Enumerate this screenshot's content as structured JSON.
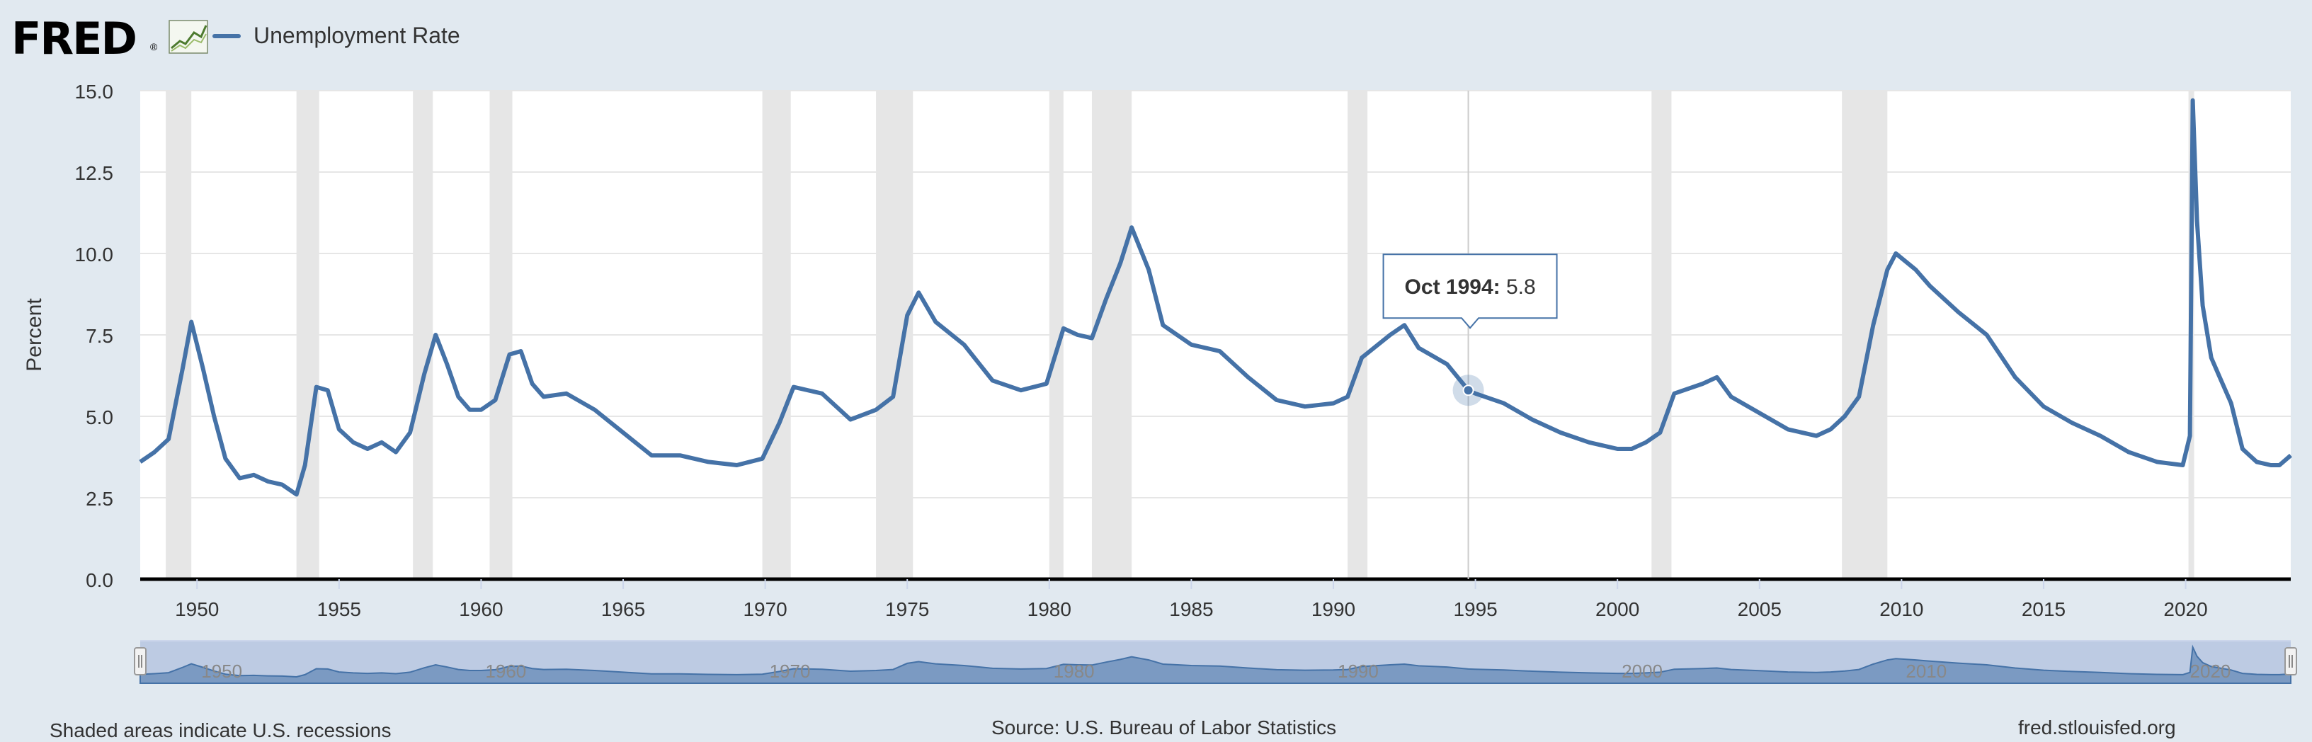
{
  "header": {
    "logo_text": "FRED",
    "logo_registered": "®",
    "legend_label": "Unemployment Rate",
    "series_color": "#4572a7"
  },
  "tooltip": {
    "date": "Oct 1994",
    "separator": ":",
    "value": "5.8",
    "x": 1994.75,
    "y": 5.8
  },
  "footer": {
    "left": "Shaded areas indicate U.S. recessions",
    "center": "Source: U.S. Bureau of Labor Statistics",
    "right": "fred.stlouisfed.org"
  },
  "chart_data": {
    "type": "line",
    "title": "Unemployment Rate",
    "xlabel": "",
    "ylabel": "Percent",
    "xlim": [
      1948,
      2023.7
    ],
    "ylim": [
      0,
      15
    ],
    "y_ticks": [
      0.0,
      2.5,
      5.0,
      7.5,
      10.0,
      12.5,
      15.0
    ],
    "y_tick_labels": [
      "0.0",
      "2.5",
      "5.0",
      "7.5",
      "10.0",
      "12.5",
      "15.0"
    ],
    "x_ticks": [
      1950,
      1955,
      1960,
      1965,
      1970,
      1975,
      1980,
      1985,
      1990,
      1995,
      2000,
      2005,
      2010,
      2015,
      2020
    ],
    "navigator_labels": [
      "1950",
      "1960",
      "1970",
      "1980",
      "1990",
      "2000",
      "2010",
      "2020"
    ],
    "recessions": [
      [
        1948.9,
        1949.8
      ],
      [
        1953.5,
        1954.3
      ],
      [
        1957.6,
        1958.3
      ],
      [
        1960.3,
        1961.1
      ],
      [
        1969.9,
        1970.9
      ],
      [
        1973.9,
        1975.2
      ],
      [
        1980.0,
        1980.5
      ],
      [
        1981.5,
        1982.9
      ],
      [
        1990.5,
        1991.2
      ],
      [
        2001.2,
        2001.9
      ],
      [
        2007.9,
        2009.5
      ],
      [
        2020.1,
        2020.3
      ]
    ],
    "series": [
      {
        "name": "Unemployment Rate",
        "x": [
          1948.0,
          1948.5,
          1949.0,
          1949.5,
          1949.8,
          1950.2,
          1950.6,
          1951.0,
          1951.5,
          1952.0,
          1952.5,
          1953.0,
          1953.5,
          1953.8,
          1954.2,
          1954.6,
          1955.0,
          1955.5,
          1956.0,
          1956.5,
          1957.0,
          1957.5,
          1958.0,
          1958.4,
          1958.8,
          1959.2,
          1959.6,
          1960.0,
          1960.5,
          1961.0,
          1961.4,
          1961.8,
          1962.2,
          1963.0,
          1964.0,
          1965.0,
          1966.0,
          1967.0,
          1968.0,
          1969.0,
          1969.9,
          1970.5,
          1971.0,
          1972.0,
          1973.0,
          1973.9,
          1974.5,
          1975.0,
          1975.4,
          1976.0,
          1977.0,
          1978.0,
          1979.0,
          1979.9,
          1980.5,
          1981.0,
          1981.5,
          1982.0,
          1982.5,
          1982.9,
          1983.5,
          1984.0,
          1985.0,
          1986.0,
          1987.0,
          1988.0,
          1989.0,
          1990.0,
          1990.5,
          1991.0,
          1992.0,
          1992.5,
          1993.0,
          1994.0,
          1994.75,
          1995.0,
          1996.0,
          1997.0,
          1998.0,
          1999.0,
          2000.0,
          2000.5,
          2001.0,
          2001.5,
          2002.0,
          2003.0,
          2003.5,
          2004.0,
          2005.0,
          2006.0,
          2007.0,
          2007.5,
          2008.0,
          2008.5,
          2009.0,
          2009.5,
          2009.8,
          2010.5,
          2011.0,
          2012.0,
          2013.0,
          2014.0,
          2015.0,
          2016.0,
          2017.0,
          2018.0,
          2019.0,
          2019.9,
          2020.15,
          2020.25,
          2020.4,
          2020.6,
          2020.9,
          2021.2,
          2021.6,
          2022.0,
          2022.5,
          2023.0,
          2023.3,
          2023.7
        ],
        "values": [
          3.6,
          3.9,
          4.3,
          6.5,
          7.9,
          6.5,
          5.0,
          3.7,
          3.1,
          3.2,
          3.0,
          2.9,
          2.6,
          3.5,
          5.9,
          5.8,
          4.6,
          4.2,
          4.0,
          4.2,
          3.9,
          4.5,
          6.3,
          7.5,
          6.6,
          5.6,
          5.2,
          5.2,
          5.5,
          6.9,
          7.0,
          6.0,
          5.6,
          5.7,
          5.2,
          4.5,
          3.8,
          3.8,
          3.6,
          3.5,
          3.7,
          4.8,
          5.9,
          5.7,
          4.9,
          5.2,
          5.6,
          8.1,
          8.8,
          7.9,
          7.2,
          6.1,
          5.8,
          6.0,
          7.7,
          7.5,
          7.4,
          8.6,
          9.7,
          10.8,
          9.5,
          7.8,
          7.2,
          7.0,
          6.2,
          5.5,
          5.3,
          5.4,
          5.6,
          6.8,
          7.5,
          7.8,
          7.1,
          6.6,
          5.8,
          5.7,
          5.4,
          4.9,
          4.5,
          4.2,
          4.0,
          4.0,
          4.2,
          4.5,
          5.7,
          6.0,
          6.2,
          5.6,
          5.1,
          4.6,
          4.4,
          4.6,
          5.0,
          5.6,
          7.8,
          9.5,
          10.0,
          9.5,
          9.0,
          8.2,
          7.5,
          6.2,
          5.3,
          4.8,
          4.4,
          3.9,
          3.6,
          3.5,
          4.4,
          14.7,
          11.0,
          8.4,
          6.8,
          6.2,
          5.4,
          4.0,
          3.6,
          3.5,
          3.5,
          3.8
        ]
      }
    ]
  }
}
